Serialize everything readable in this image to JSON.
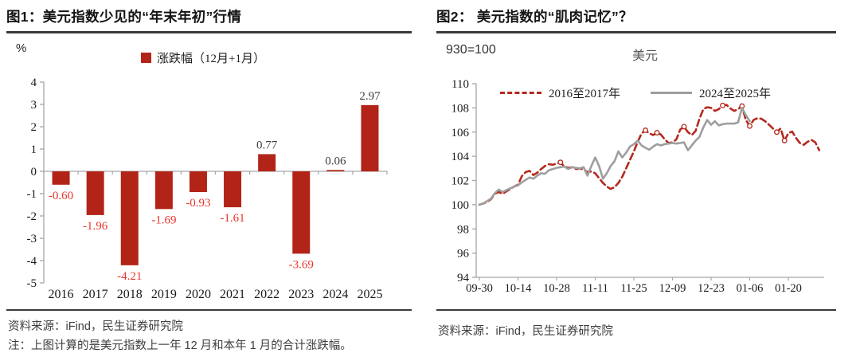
{
  "colors": {
    "bar": "#b22418",
    "neg_label": "#e8352a",
    "pos_label": "#3f3f3f",
    "axis": "#a6a6a6",
    "tick_text": "#1a1a1a",
    "line_2016": "#b5291e",
    "line_2024": "#9e9e9e"
  },
  "fig1": {
    "title": "图1：美元指数少见的“年末年初”行情",
    "unit_label": "%",
    "legend_label": "涨跌幅（12月+1月）",
    "source": "资料来源：iFind，民生证券研究院",
    "note": "注：上图计算的是美元指数上一年 12 月和本年 1 月的合计涨跌幅。"
  },
  "fig2": {
    "title": "图2： 美元指数的“肌肉记忆”？",
    "index_label": "930=100",
    "chart_title": "美元",
    "source": "资料来源：iFind，民生证券研究院"
  },
  "chart_data": [
    {
      "type": "bar",
      "title": "美元指数少见的“年末年初”行情",
      "legend": "涨跌幅（12月+1月）",
      "ylabel": "%",
      "ylim": [
        -5,
        4
      ],
      "ytick_step": 1,
      "grid": false,
      "categories": [
        "2016",
        "2017",
        "2018",
        "2019",
        "2020",
        "2021",
        "2022",
        "2023",
        "2024",
        "2025"
      ],
      "values": [
        -0.6,
        -1.96,
        -4.21,
        -1.69,
        -0.93,
        -1.61,
        0.77,
        -3.69,
        0.06,
        2.97
      ]
    },
    {
      "type": "line",
      "title": "美元",
      "ylabel": "930=100",
      "ylim": [
        94,
        110
      ],
      "ytick_step": 2,
      "grid": false,
      "legend_position": "top",
      "x_tick_labels": [
        "09-30",
        "10-14",
        "10-28",
        "11-11",
        "11-25",
        "12-09",
        "12-23",
        "01-06",
        "01-20"
      ],
      "x_tick_every": 10,
      "series": [
        {
          "name": "2016至2017年",
          "style": "dashed",
          "color": "#b5291e",
          "marker_indices": [
            21,
            43,
            46,
            53,
            63,
            68,
            70,
            77,
            79
          ],
          "values": [
            100.0,
            100.1,
            100.25,
            100.45,
            100.9,
            101.05,
            100.9,
            101.1,
            101.3,
            101.5,
            101.65,
            102.35,
            102.7,
            102.8,
            102.45,
            102.65,
            102.95,
            103.2,
            103.35,
            103.3,
            103.4,
            103.5,
            103.15,
            103.05,
            103.1,
            102.95,
            103.0,
            102.9,
            102.7,
            102.75,
            102.6,
            102.2,
            101.8,
            101.5,
            101.3,
            101.45,
            101.8,
            102.3,
            103.0,
            103.7,
            104.4,
            105.2,
            105.9,
            106.15,
            105.9,
            105.75,
            105.95,
            105.8,
            105.4,
            105.1,
            105.15,
            105.4,
            106.2,
            106.45,
            106.0,
            105.75,
            106.1,
            107.1,
            107.9,
            108.05,
            108.0,
            107.75,
            107.9,
            108.2,
            108.25,
            107.95,
            107.75,
            107.9,
            108.15,
            107.0,
            106.5,
            107.0,
            107.15,
            107.1,
            106.9,
            106.6,
            106.3,
            106.0,
            106.3,
            105.3,
            105.9,
            106.05,
            105.5,
            105.1,
            104.95,
            105.2,
            105.35,
            105.15,
            104.5
          ]
        },
        {
          "name": "2024至2025年",
          "style": "solid",
          "color": "#9e9e9e",
          "marker_indices": [],
          "values": [
            100.0,
            100.1,
            100.3,
            100.5,
            100.95,
            101.25,
            101.05,
            101.2,
            101.35,
            101.5,
            101.6,
            101.85,
            102.05,
            102.25,
            102.15,
            102.4,
            102.6,
            102.55,
            102.85,
            102.95,
            103.05,
            103.1,
            103.15,
            102.95,
            103.1,
            103.05,
            103.0,
            103.1,
            102.4,
            103.2,
            103.9,
            103.2,
            102.15,
            102.6,
            103.2,
            103.6,
            104.4,
            103.9,
            104.3,
            104.8,
            105.0,
            105.3,
            104.9,
            104.7,
            104.55,
            104.8,
            105.0,
            104.9,
            105.0,
            105.05,
            105.1,
            105.05,
            105.1,
            105.15,
            104.5,
            104.9,
            105.3,
            105.6,
            106.4,
            107.0,
            106.6,
            106.9,
            106.55,
            106.65,
            106.7,
            106.7,
            106.7,
            106.8,
            108.0,
            107.4,
            106.9
          ]
        }
      ]
    }
  ]
}
